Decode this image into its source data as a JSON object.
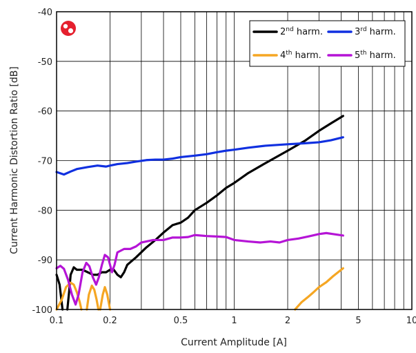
{
  "chart_data": {
    "type": "line",
    "xlabel": "Current Amplitude [A]",
    "ylabel": "Current Harmonic Distortion Ratio [dB]",
    "xscale": "log",
    "xlim": [
      0.1,
      10
    ],
    "ylim": [
      -100,
      -40
    ],
    "grid": true,
    "legend_position": "top-right",
    "x_ticks": [
      {
        "value": 0.1,
        "label": "0.1"
      },
      {
        "value": 0.2,
        "label": "0.2"
      },
      {
        "value": 0.5,
        "label": "0.5"
      },
      {
        "value": 1,
        "label": "1"
      },
      {
        "value": 2,
        "label": "2"
      },
      {
        "value": 5,
        "label": "5"
      },
      {
        "value": 10,
        "label": "10"
      }
    ],
    "y_ticks": [
      {
        "value": -40,
        "label": "-40"
      },
      {
        "value": -50,
        "label": "-50"
      },
      {
        "value": -60,
        "label": "-60"
      },
      {
        "value": -70,
        "label": "-70"
      },
      {
        "value": -80,
        "label": "-80"
      },
      {
        "value": -90,
        "label": "-90"
      },
      {
        "value": -100,
        "label": "-100"
      }
    ],
    "series": [
      {
        "name": "2nd harm.",
        "label_base": "2",
        "label_sup": "nd",
        "label_rest": " harm.",
        "color": "#000000",
        "segments": [
          [
            [
              0.1,
              -93
            ],
            [
              0.104,
              -95
            ],
            [
              0.108,
              -100
            ]
          ],
          [
            [
              0.115,
              -100
            ],
            [
              0.118,
              -96
            ],
            [
              0.12,
              -93
            ],
            [
              0.125,
              -91.5
            ],
            [
              0.13,
              -92
            ],
            [
              0.14,
              -92
            ],
            [
              0.15,
              -92.5
            ],
            [
              0.16,
              -93
            ],
            [
              0.17,
              -93
            ],
            [
              0.18,
              -92.5
            ],
            [
              0.19,
              -92.5
            ],
            [
              0.2,
              -92
            ],
            [
              0.21,
              -92
            ],
            [
              0.22,
              -93
            ],
            [
              0.23,
              -93.5
            ],
            [
              0.24,
              -92.5
            ],
            [
              0.25,
              -91
            ],
            [
              0.28,
              -89.5
            ],
            [
              0.32,
              -87.5
            ],
            [
              0.36,
              -86
            ],
            [
              0.4,
              -84.5
            ],
            [
              0.45,
              -83
            ],
            [
              0.5,
              -82.5
            ],
            [
              0.55,
              -81.5
            ],
            [
              0.6,
              -80
            ],
            [
              0.7,
              -78.5
            ],
            [
              0.8,
              -77
            ],
            [
              0.9,
              -75.5
            ],
            [
              1.0,
              -74.5
            ],
            [
              1.2,
              -72.5
            ],
            [
              1.5,
              -70.5
            ],
            [
              2.0,
              -68
            ],
            [
              2.5,
              -66
            ],
            [
              3.0,
              -64
            ],
            [
              3.5,
              -62.5
            ],
            [
              4.1,
              -61
            ]
          ]
        ]
      },
      {
        "name": "3rd harm.",
        "label_base": "3",
        "label_sup": "rd",
        "label_rest": " harm.",
        "color": "#1030e0",
        "segments": [
          [
            [
              0.1,
              -72.3
            ],
            [
              0.11,
              -72.8
            ],
            [
              0.12,
              -72.2
            ],
            [
              0.13,
              -71.7
            ],
            [
              0.15,
              -71.3
            ],
            [
              0.17,
              -71
            ],
            [
              0.19,
              -71.2
            ],
            [
              0.2,
              -71
            ],
            [
              0.22,
              -70.7
            ],
            [
              0.25,
              -70.5
            ],
            [
              0.28,
              -70.2
            ],
            [
              0.32,
              -69.9
            ],
            [
              0.36,
              -69.8
            ],
            [
              0.4,
              -69.8
            ],
            [
              0.45,
              -69.6
            ],
            [
              0.5,
              -69.3
            ],
            [
              0.6,
              -69
            ],
            [
              0.7,
              -68.7
            ],
            [
              0.8,
              -68.3
            ],
            [
              0.9,
              -68
            ],
            [
              1.0,
              -67.8
            ],
            [
              1.2,
              -67.4
            ],
            [
              1.5,
              -67
            ],
            [
              2.0,
              -66.7
            ],
            [
              2.5,
              -66.5
            ],
            [
              3.0,
              -66.3
            ],
            [
              3.5,
              -65.9
            ],
            [
              4.1,
              -65.3
            ]
          ]
        ]
      },
      {
        "name": "4th harm.",
        "label_base": "4",
        "label_sup": "th",
        "label_rest": " harm.",
        "color": "#f5a623",
        "segments": [
          [
            [
              0.1,
              -100
            ],
            [
              0.107,
              -98
            ],
            [
              0.113,
              -95.5
            ],
            [
              0.12,
              -94.6
            ],
            [
              0.125,
              -95
            ],
            [
              0.13,
              -96.5
            ],
            [
              0.135,
              -98.5
            ],
            [
              0.138,
              -100
            ]
          ],
          [
            [
              0.148,
              -100
            ],
            [
              0.152,
              -97
            ],
            [
              0.158,
              -95.2
            ],
            [
              0.163,
              -96
            ],
            [
              0.168,
              -98
            ],
            [
              0.172,
              -100
            ]
          ],
          [
            [
              0.176,
              -100
            ],
            [
              0.182,
              -97
            ],
            [
              0.187,
              -95.5
            ],
            [
              0.193,
              -97
            ],
            [
              0.2,
              -100
            ]
          ],
          [
            [
              2.2,
              -100
            ],
            [
              2.4,
              -98.5
            ],
            [
              2.6,
              -97.5
            ],
            [
              2.8,
              -96.5
            ],
            [
              3.0,
              -95.5
            ],
            [
              3.3,
              -94.5
            ],
            [
              3.6,
              -93.3
            ],
            [
              4.1,
              -91.7
            ]
          ]
        ]
      },
      {
        "name": "5th harm.",
        "label_base": "5",
        "label_sup": "th",
        "label_rest": " harm.",
        "color": "#b514d6",
        "segments": [
          [
            [
              0.1,
              -91.7
            ],
            [
              0.105,
              -91.2
            ],
            [
              0.11,
              -91.8
            ],
            [
              0.116,
              -94
            ],
            [
              0.122,
              -97
            ],
            [
              0.128,
              -99
            ],
            [
              0.133,
              -97
            ],
            [
              0.14,
              -92.5
            ],
            [
              0.147,
              -90.6
            ],
            [
              0.153,
              -91.3
            ],
            [
              0.16,
              -93.5
            ],
            [
              0.167,
              -95
            ],
            [
              0.173,
              -93.5
            ],
            [
              0.18,
              -91
            ],
            [
              0.187,
              -89
            ],
            [
              0.195,
              -89.5
            ],
            [
              0.2,
              -91
            ],
            [
              0.205,
              -92.5
            ],
            [
              0.212,
              -91
            ],
            [
              0.22,
              -88.5
            ],
            [
              0.24,
              -87.8
            ],
            [
              0.26,
              -87.8
            ],
            [
              0.28,
              -87.3
            ],
            [
              0.3,
              -86.5
            ],
            [
              0.35,
              -86
            ],
            [
              0.4,
              -86
            ],
            [
              0.45,
              -85.5
            ],
            [
              0.5,
              -85.5
            ],
            [
              0.55,
              -85.4
            ],
            [
              0.6,
              -85
            ],
            [
              0.7,
              -85.2
            ],
            [
              0.8,
              -85.3
            ],
            [
              0.9,
              -85.4
            ],
            [
              1.0,
              -86
            ],
            [
              1.2,
              -86.3
            ],
            [
              1.4,
              -86.5
            ],
            [
              1.6,
              -86.3
            ],
            [
              1.8,
              -86.5
            ],
            [
              2.0,
              -86
            ],
            [
              2.3,
              -85.7
            ],
            [
              2.6,
              -85.3
            ],
            [
              3.0,
              -84.8
            ],
            [
              3.3,
              -84.6
            ],
            [
              3.6,
              -84.8
            ],
            [
              4.1,
              -85.1
            ]
          ]
        ]
      }
    ]
  }
}
